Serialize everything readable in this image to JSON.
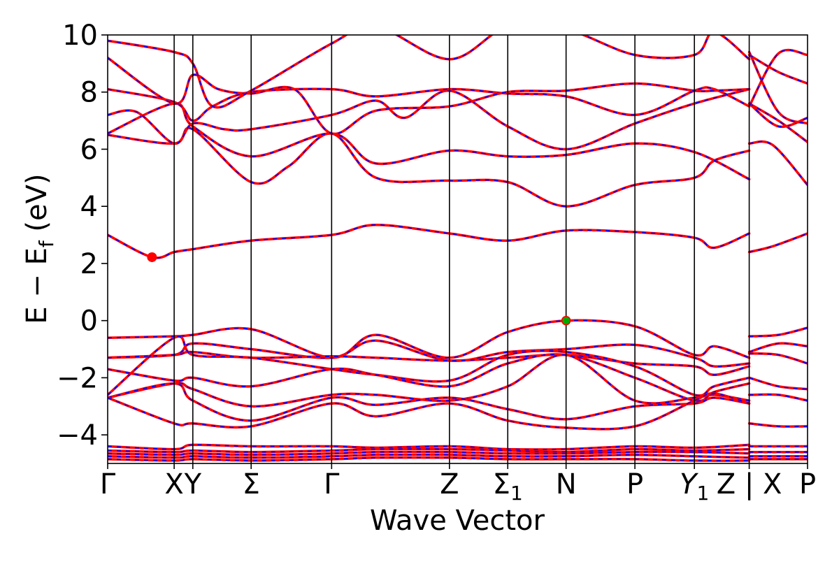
{
  "chart_data": {
    "type": "line",
    "xlabel": "Wave Vector",
    "ylabel": "E − E",
    "ylabel_sub": "f",
    "ylabel_unit": " (eV)",
    "ylim": [
      -5,
      10
    ],
    "yticks": [
      -4,
      -2,
      0,
      2,
      4,
      6,
      8,
      10
    ],
    "ytick_labels": [
      "−4",
      "−2",
      "0",
      "2",
      "4",
      "6",
      "8",
      "10"
    ],
    "x_range": [
      0,
      12.0
    ],
    "kpoints": [
      {
        "label": "Γ",
        "sub": "",
        "italic": false,
        "x": 0.0
      },
      {
        "label": "X",
        "sub": "",
        "italic": false,
        "x": 1.14
      },
      {
        "label": "Y",
        "sub": "",
        "italic": false,
        "x": 1.46
      },
      {
        "label": "Σ",
        "sub": "",
        "italic": false,
        "x": 2.46
      },
      {
        "label": "Γ",
        "sub": "",
        "italic": false,
        "x": 3.84
      },
      {
        "label": "Z",
        "sub": "",
        "italic": false,
        "x": 5.86
      },
      {
        "label": "Σ",
        "sub": "1",
        "italic": false,
        "x": 6.86
      },
      {
        "label": "N",
        "sub": "",
        "italic": false,
        "x": 7.86
      },
      {
        "label": "P",
        "sub": "",
        "italic": false,
        "x": 9.04
      },
      {
        "label": "Y",
        "sub": "1",
        "italic": true,
        "x": 10.06
      },
      {
        "label": "Z | X",
        "sub": "",
        "italic": false,
        "x": 11.0
      },
      {
        "label": "P",
        "sub": "",
        "italic": false,
        "x": 12.0
      }
    ],
    "series_colors": {
      "line": "#ff0000",
      "dash": "#0000ff",
      "cbm_marker": "#ff0000",
      "vbm_marker": "#00aa00"
    },
    "markers": [
      {
        "kind": "conduction-band-minimum",
        "x": 0.76,
        "y": 2.22
      },
      {
        "kind": "valence-band-maximum",
        "x": 7.86,
        "y": 0.0
      }
    ],
    "bands": [
      {
        "x": [
          0.0,
          0.76,
          1.14,
          1.46,
          2.46,
          3.84,
          4.6,
          5.86,
          6.86,
          7.86,
          9.04,
          10.06,
          10.4,
          11.0
        ],
        "y": [
          3.0,
          2.22,
          2.4,
          2.5,
          2.8,
          3.0,
          3.35,
          3.05,
          2.8,
          3.15,
          3.1,
          2.9,
          2.55,
          3.05
        ]
      },
      {
        "x": [
          11.0,
          11.4,
          12.0
        ],
        "y": [
          2.4,
          2.6,
          3.05
        ]
      },
      {
        "x": [
          0.0,
          1.14,
          1.46,
          2.46,
          3.1,
          3.84,
          4.6,
          5.86,
          6.86,
          7.86,
          9.04,
          10.06,
          10.4,
          11.0
        ],
        "y": [
          6.5,
          6.2,
          6.7,
          4.85,
          5.4,
          6.55,
          5.0,
          4.9,
          4.85,
          4.0,
          4.75,
          5.0,
          5.6,
          5.95
        ]
      },
      {
        "x": [
          11.0,
          11.4,
          12.0
        ],
        "y": [
          6.2,
          6.15,
          4.75
        ]
      },
      {
        "x": [
          0.0,
          1.14,
          1.46,
          2.46,
          3.84,
          4.6,
          5.86,
          6.86,
          7.86,
          9.04,
          10.06,
          11.0
        ],
        "y": [
          6.55,
          7.6,
          6.8,
          5.75,
          6.55,
          5.5,
          5.95,
          5.75,
          5.8,
          6.2,
          5.9,
          4.95
        ]
      },
      {
        "x": [
          0.0,
          0.5,
          1.14,
          1.46,
          2.0,
          2.46,
          3.84,
          4.6,
          5.1,
          5.86,
          6.86,
          7.86,
          9.04,
          10.06,
          11.0
        ],
        "y": [
          7.2,
          7.3,
          6.2,
          6.9,
          6.7,
          6.7,
          7.2,
          7.7,
          7.1,
          8.05,
          6.8,
          6.0,
          6.9,
          7.6,
          8.1
        ]
      },
      {
        "x": [
          0.0,
          1.14,
          1.46,
          1.8,
          2.46,
          3.84,
          4.6,
          5.86,
          6.86,
          7.86,
          9.04,
          10.06,
          10.4,
          11.0
        ],
        "y": [
          8.1,
          7.65,
          7.0,
          7.5,
          8.0,
          8.1,
          7.85,
          8.1,
          7.95,
          7.85,
          7.2,
          8.05,
          8.1,
          7.5
        ]
      },
      {
        "x": [
          11.0,
          11.5,
          12.0
        ],
        "y": [
          7.6,
          6.8,
          7.1
        ]
      },
      {
        "x": [
          11.0,
          11.5,
          12.0
        ],
        "y": [
          7.6,
          7.0,
          6.25
        ]
      },
      {
        "x": [
          11.0,
          11.5,
          12.0
        ],
        "y": [
          9.4,
          7.3,
          6.9
        ]
      },
      {
        "x": [
          11.0,
          11.5,
          12.0
        ],
        "y": [
          9.3,
          8.7,
          8.3
        ]
      },
      {
        "x": [
          11.0,
          11.5,
          12.0
        ],
        "y": [
          7.5,
          9.35,
          9.3
        ]
      },
      {
        "x": [
          0.0,
          1.14,
          1.46,
          1.9,
          2.46,
          3.2,
          3.84,
          4.6,
          5.86,
          6.86,
          7.86,
          9.04,
          10.06,
          10.4,
          11.0
        ],
        "y": [
          9.2,
          7.6,
          8.6,
          8.1,
          7.95,
          8.1,
          6.55,
          7.35,
          7.5,
          8.0,
          8.05,
          8.3,
          8.05,
          8.05,
          8.1
        ]
      },
      {
        "x": [
          0.0,
          1.14,
          1.46,
          1.8,
          2.46,
          3.84,
          4.6,
          5.86,
          6.86,
          7.86,
          9.04,
          10.06,
          10.4,
          11.0
        ],
        "y": [
          9.8,
          9.4,
          9.0,
          7.5,
          8.05,
          9.7,
          10.3,
          9.15,
          10.3,
          10.2,
          9.3,
          9.3,
          10.1,
          9.15
        ]
      },
      {
        "x": [
          0.0,
          1.14,
          1.46,
          2.46,
          3.84,
          4.6,
          5.86,
          6.86,
          7.86,
          9.04,
          10.06,
          10.4,
          11.0
        ],
        "y": [
          -0.6,
          -0.55,
          -0.5,
          -0.3,
          -1.3,
          -0.5,
          -1.3,
          -0.4,
          0.0,
          -0.2,
          -1.2,
          -0.9,
          -1.3
        ]
      },
      {
        "x": [
          11.0,
          11.5,
          12.0
        ],
        "y": [
          -0.55,
          -0.5,
          -0.25
        ]
      },
      {
        "x": [
          0.0,
          1.14,
          1.46,
          2.46,
          3.84,
          4.6,
          5.86,
          6.86,
          7.86,
          9.04,
          10.06,
          10.4,
          11.0
        ],
        "y": [
          -1.3,
          -1.2,
          -0.8,
          -1.0,
          -1.3,
          -0.7,
          -1.4,
          -1.1,
          -1.0,
          -0.85,
          -1.3,
          -1.6,
          -1.5
        ]
      },
      {
        "x": [
          11.0,
          11.5,
          12.0
        ],
        "y": [
          -1.1,
          -0.8,
          -0.9
        ]
      },
      {
        "x": [
          0.0,
          1.14,
          1.46,
          2.46,
          3.84,
          4.6,
          5.86,
          6.86,
          7.86,
          9.04,
          10.06,
          10.4,
          11.0
        ],
        "y": [
          -1.3,
          -1.2,
          -1.1,
          -1.3,
          -1.25,
          -1.3,
          -1.4,
          -1.3,
          -1.2,
          -1.5,
          -1.6,
          -1.9,
          -1.6
        ]
      },
      {
        "x": [
          11.0,
          11.5,
          12.0
        ],
        "y": [
          -1.15,
          -1.2,
          -1.5
        ]
      },
      {
        "x": [
          0.0,
          1.14,
          1.46,
          2.46,
          3.84,
          4.6,
          5.86,
          6.86,
          7.86,
          9.04,
          10.06,
          10.4,
          11.0
        ],
        "y": [
          -2.6,
          -0.6,
          -1.2,
          -1.3,
          -1.7,
          -1.9,
          -2.1,
          -1.2,
          -1.1,
          -1.6,
          -2.6,
          -2.3,
          -2.0
        ]
      },
      {
        "x": [
          11.0,
          11.5,
          12.0
        ],
        "y": [
          -2.0,
          -2.3,
          -2.4
        ]
      },
      {
        "x": [
          0.0,
          1.14,
          1.46,
          2.46,
          3.84,
          4.6,
          5.86,
          6.86,
          7.86,
          9.04,
          10.06,
          10.4,
          11.0
        ],
        "y": [
          -1.7,
          -2.1,
          -2.0,
          -2.3,
          -1.7,
          -1.9,
          -2.3,
          -1.5,
          -1.2,
          -2.0,
          -2.8,
          -2.5,
          -2.2
        ]
      },
      {
        "x": [
          11.0,
          11.5,
          12.0
        ],
        "y": [
          -2.6,
          -2.6,
          -2.8
        ]
      },
      {
        "x": [
          0.0,
          1.14,
          1.46,
          2.46,
          3.84,
          4.6,
          5.86,
          6.86,
          7.86,
          9.04,
          10.06,
          10.4,
          11.0
        ],
        "y": [
          -2.7,
          -2.2,
          -2.4,
          -3.0,
          -2.6,
          -2.6,
          -2.8,
          -2.3,
          -1.2,
          -2.8,
          -2.7,
          -2.6,
          -2.8
        ]
      },
      {
        "x": [
          0.0,
          1.14,
          1.46,
          2.46,
          3.84,
          4.6,
          5.86,
          6.86,
          7.86,
          9.04,
          10.06,
          10.4,
          11.0
        ],
        "y": [
          -2.7,
          -2.2,
          -2.8,
          -3.5,
          -2.7,
          -2.95,
          -2.7,
          -3.1,
          -3.45,
          -3.0,
          -2.9,
          -2.7,
          -2.9
        ]
      },
      {
        "x": [
          0.0,
          1.14,
          1.46,
          2.46,
          3.84,
          4.6,
          5.86,
          6.86,
          7.86,
          9.04,
          10.06,
          10.4,
          11.0
        ],
        "y": [
          -2.7,
          -3.6,
          -3.6,
          -3.7,
          -2.9,
          -3.35,
          -2.9,
          -3.5,
          -3.75,
          -3.7,
          -2.8,
          -2.55,
          -2.9
        ]
      },
      {
        "x": [
          11.0,
          11.5,
          12.0
        ],
        "y": [
          -3.6,
          -3.7,
          -3.7
        ]
      },
      {
        "x": [
          0.0,
          1.14,
          1.46,
          2.46,
          3.84,
          4.6,
          5.86,
          6.86,
          7.86,
          9.04,
          10.06,
          11.0
        ],
        "y": [
          -4.4,
          -4.5,
          -4.35,
          -4.4,
          -4.4,
          -4.45,
          -4.4,
          -4.5,
          -4.5,
          -4.4,
          -4.45,
          -4.35
        ]
      },
      {
        "x": [
          0.0,
          1.14,
          1.46,
          2.46,
          3.84,
          4.6,
          5.86,
          6.86,
          7.86,
          9.04,
          10.06,
          11.0
        ],
        "y": [
          -4.55,
          -4.6,
          -4.55,
          -4.6,
          -4.55,
          -4.5,
          -4.5,
          -4.55,
          -4.6,
          -4.5,
          -4.55,
          -4.5
        ]
      },
      {
        "x": [
          0.0,
          1.14,
          1.46,
          2.46,
          3.84,
          4.6,
          5.86,
          6.86,
          7.86,
          9.04,
          10.06,
          11.0
        ],
        "y": [
          -4.65,
          -4.7,
          -4.65,
          -4.7,
          -4.65,
          -4.6,
          -4.6,
          -4.65,
          -4.65,
          -4.6,
          -4.6,
          -4.65
        ]
      },
      {
        "x": [
          0.0,
          1.14,
          1.46,
          2.46,
          3.84,
          4.6,
          5.86,
          6.86,
          7.86,
          9.04,
          10.06,
          11.0
        ],
        "y": [
          -4.75,
          -4.8,
          -4.75,
          -4.8,
          -4.75,
          -4.7,
          -4.7,
          -4.75,
          -4.75,
          -4.7,
          -4.75,
          -4.8
        ]
      },
      {
        "x": [
          0.0,
          1.14,
          1.46,
          2.46,
          3.84,
          4.6,
          5.86,
          6.86,
          7.86,
          9.04,
          10.06,
          11.0
        ],
        "y": [
          -4.85,
          -4.9,
          -4.85,
          -4.9,
          -4.85,
          -4.8,
          -4.8,
          -4.85,
          -4.85,
          -4.85,
          -4.9,
          -4.9
        ]
      },
      {
        "x": [
          11.0,
          11.5,
          12.0
        ],
        "y": [
          -4.4,
          -4.4,
          -4.4
        ]
      },
      {
        "x": [
          11.0,
          11.5,
          12.0
        ],
        "y": [
          -4.6,
          -4.6,
          -4.6
        ]
      },
      {
        "x": [
          11.0,
          11.5,
          12.0
        ],
        "y": [
          -4.75,
          -4.75,
          -4.75
        ]
      },
      {
        "x": [
          11.0,
          11.5,
          12.0
        ],
        "y": [
          -4.85,
          -4.85,
          -4.85
        ]
      }
    ]
  }
}
